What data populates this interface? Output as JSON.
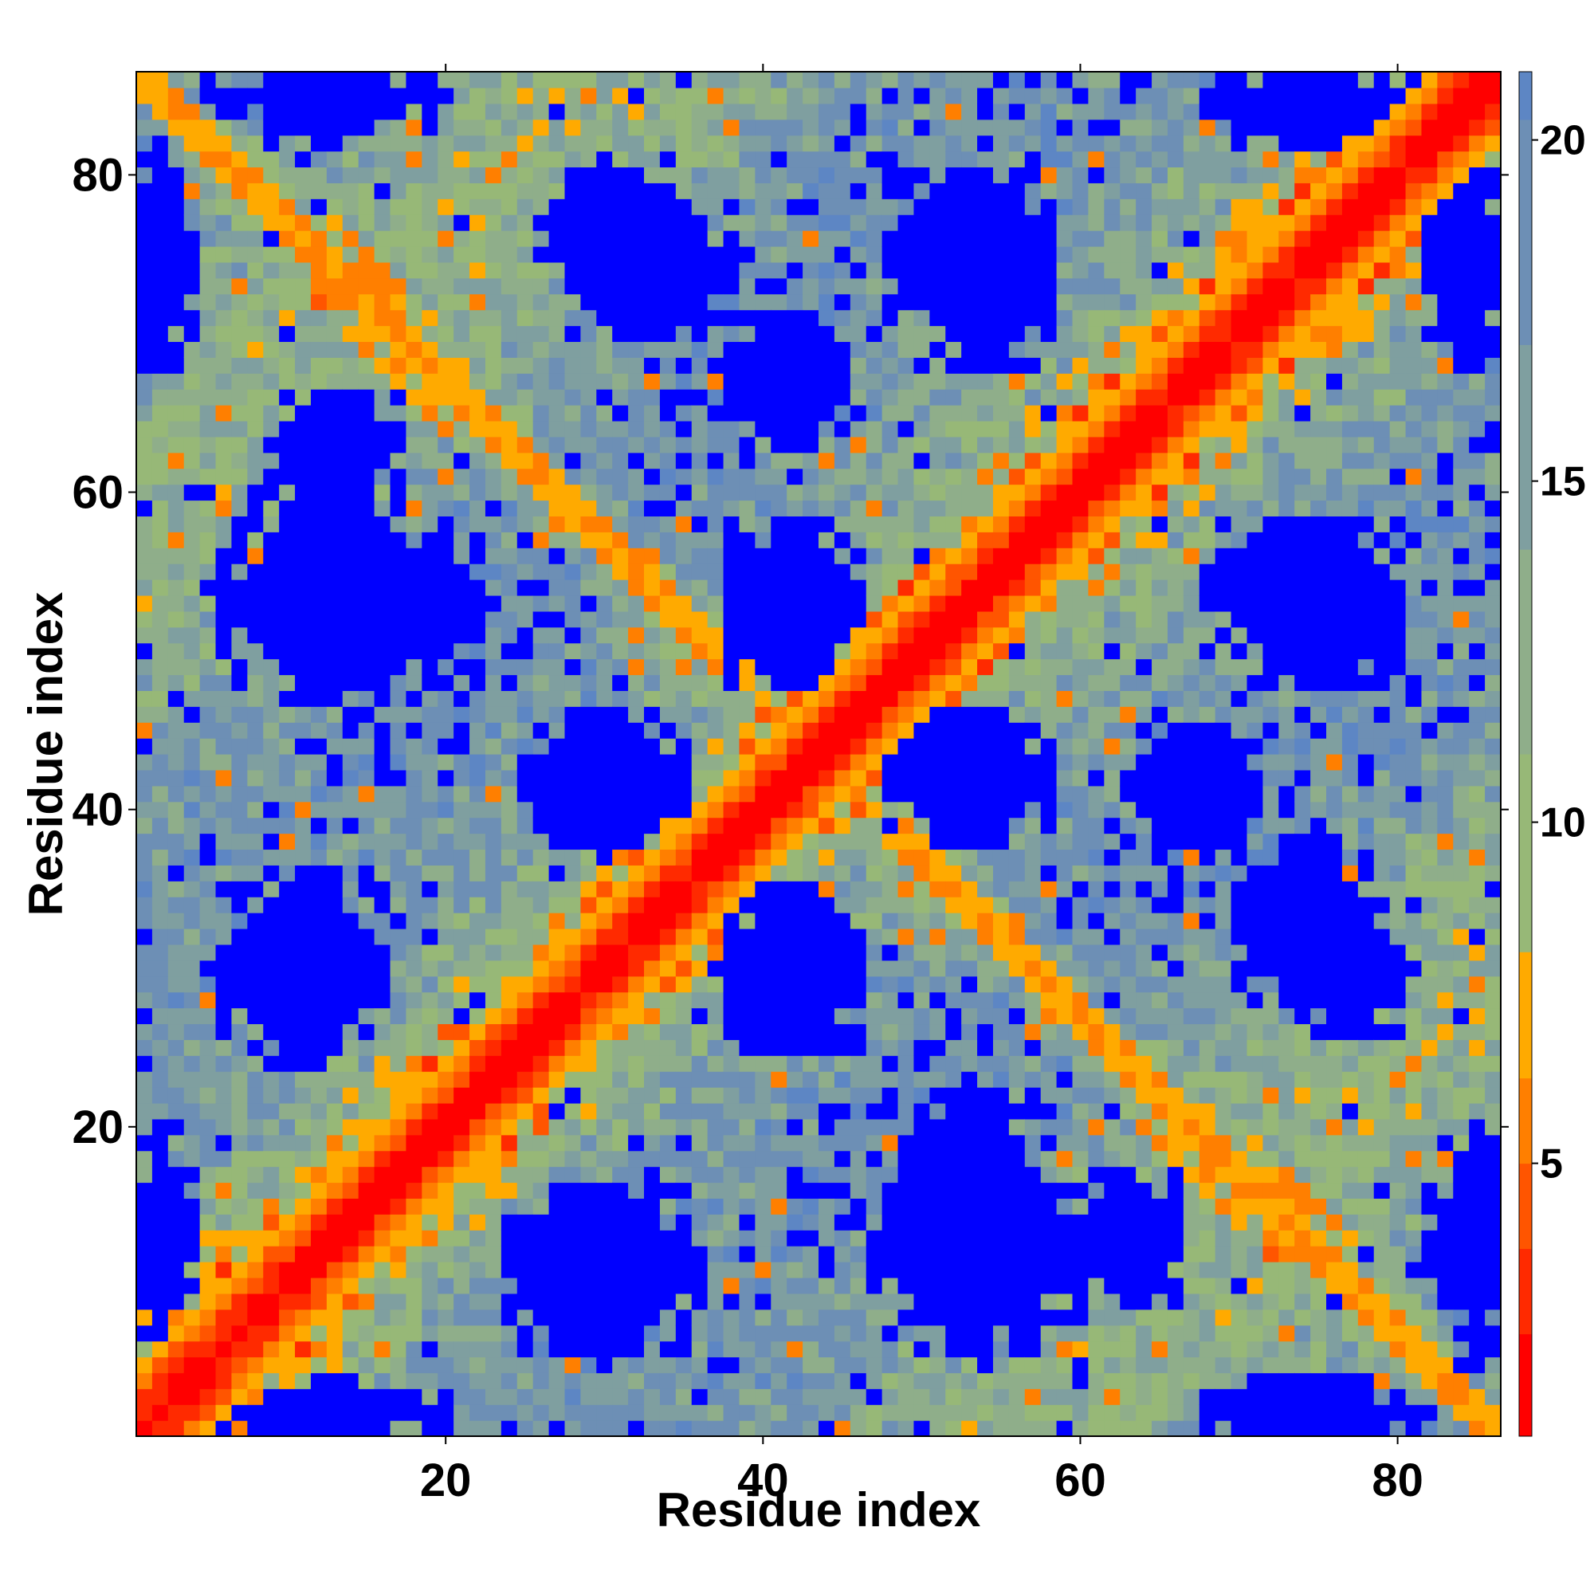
{
  "chart_data": {
    "type": "heatmap",
    "title": "",
    "xlabel": "Residue index",
    "ylabel": "Residue index",
    "n_residues": 86,
    "xlim": [
      1,
      86
    ],
    "ylim": [
      1,
      86
    ],
    "x_ticks": [
      20,
      40,
      60,
      80
    ],
    "y_ticks": [
      20,
      40,
      60,
      80
    ],
    "grid": false,
    "colorbar": {
      "position": "right",
      "ticks": [
        5,
        10,
        15,
        20
      ],
      "range": [
        1,
        21
      ],
      "colors": [
        "#ff0000",
        "#ff2a00",
        "#ff5500",
        "#ff7f00",
        "#ffaa00",
        "#97b877",
        "#8fae8a",
        "#7f9fa0",
        "#6d8fb5",
        "#5d86c4",
        "#0000ff"
      ],
      "bounds": [
        1,
        2.5,
        3.75,
        5,
        6.25,
        8.1,
        11,
        14,
        17,
        20.3,
        21
      ]
    },
    "structure": {
      "description_source": "pairwise residue distance map (values read from color scale)",
      "diagonal_value": 1,
      "near_diagonal": [
        1,
        2,
        3.5,
        5.5,
        7
      ],
      "anti_diagonal_contact_band": {
        "center_sum": 87,
        "value": 6.5
      },
      "far_blocks": [
        {
          "x": [
            8,
            17
          ],
          "y": [
            47,
            60
          ],
          "value": 21
        },
        {
          "x": [
            8,
            15
          ],
          "y": [
            24,
            36
          ],
          "value": 21
        },
        {
          "x": [
            25,
            35
          ],
          "y": [
            38,
            46
          ],
          "value": 21
        },
        {
          "x": [
            25,
            35
          ],
          "y": [
            6,
            16
          ],
          "value": 21
        },
        {
          "x": [
            38,
            46
          ],
          "y": [
            48,
            58
          ],
          "value": 21
        },
        {
          "x": [
            38,
            45
          ],
          "y": [
            25,
            35
          ],
          "value": 21
        },
        {
          "x": [
            48,
            58
          ],
          "y": [
            6,
            22
          ],
          "value": 21
        },
        {
          "x": [
            50,
            57
          ],
          "y": [
            38,
            46
          ],
          "value": 21
        },
        {
          "x": [
            50,
            58
          ],
          "y": [
            68,
            78
          ],
          "value": 21
        },
        {
          "x": [
            70,
            80
          ],
          "y": [
            48,
            58
          ],
          "value": 21
        },
        {
          "x": [
            28,
            38
          ],
          "y": [
            70,
            78
          ],
          "value": 21
        },
        {
          "x": [
            9,
            17
          ],
          "y": [
            60,
            66
          ],
          "value": 21
        },
        {
          "x": [
            9,
            16
          ],
          "y": [
            82,
            86
          ],
          "value": 21
        },
        {
          "x": [
            70,
            79
          ],
          "y": [
            82,
            86
          ],
          "value": 21
        },
        {
          "x": [
            70,
            79
          ],
          "y": [
            1,
            4
          ],
          "value": 21
        },
        {
          "x": [
            9,
            17
          ],
          "y": [
            1,
            4
          ],
          "value": 21
        },
        {
          "x": [
            1,
            3
          ],
          "y": [
            68,
            81
          ],
          "value": 21
        },
        {
          "x": [
            1,
            3
          ],
          "y": [
            5,
            20
          ],
          "value": 21
        },
        {
          "x": [
            84,
            86
          ],
          "y": [
            5,
            20
          ],
          "value": 21
        },
        {
          "x": [
            84,
            86
          ],
          "y": [
            68,
            81
          ],
          "value": 21
        },
        {
          "x": [
            63,
            71
          ],
          "y": [
            38,
            45
          ],
          "value": 21
        },
        {
          "x": [
            74,
            80
          ],
          "y": [
            26,
            34
          ],
          "value": 21
        }
      ],
      "background_value": 15
    }
  }
}
